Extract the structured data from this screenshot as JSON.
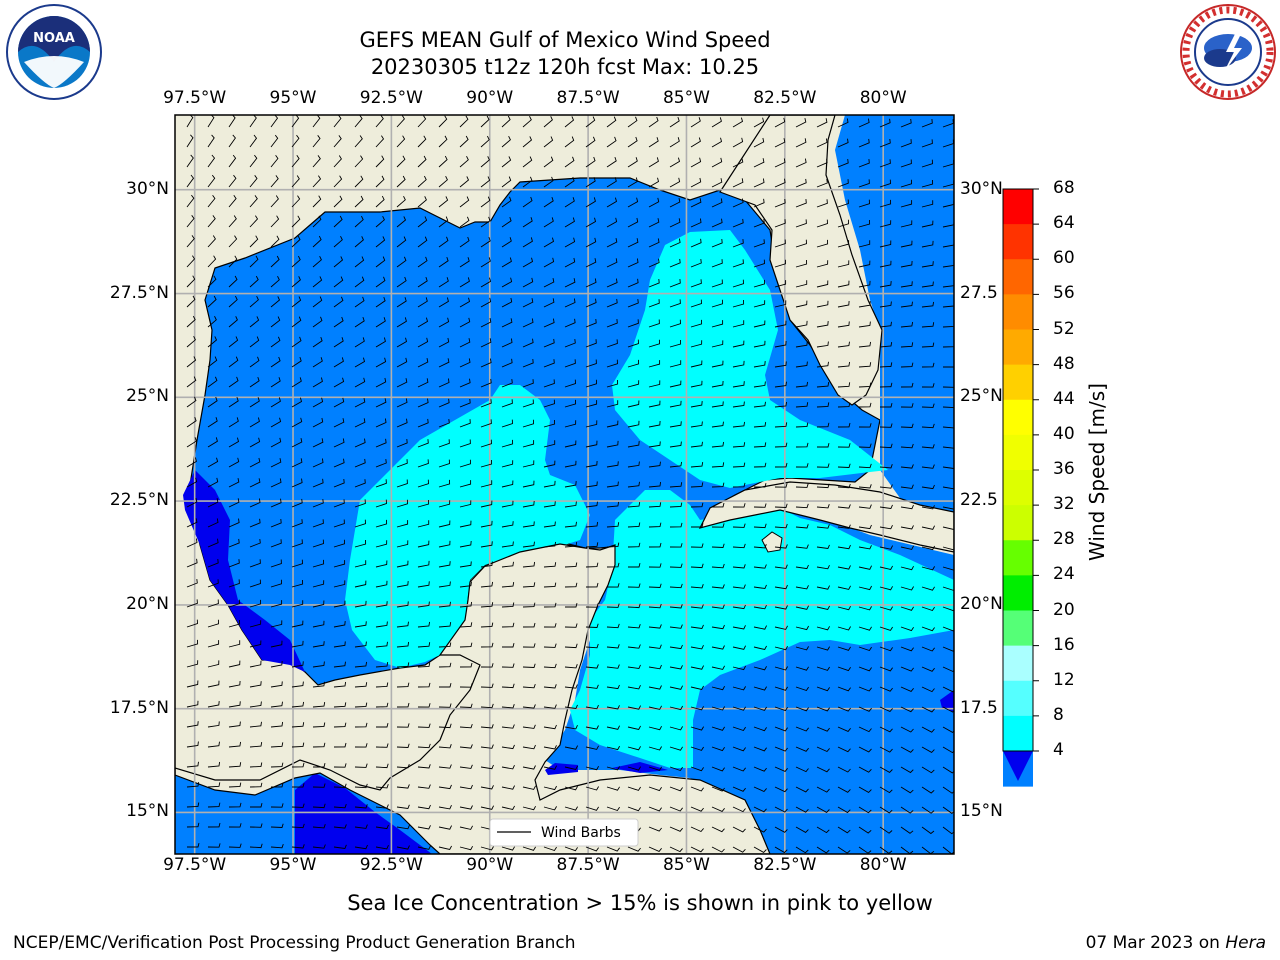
{
  "title": {
    "line1": "GEFS MEAN Gulf of Mexico Wind Speed",
    "line2": "20230305 t12z 120h fcst   Max: 10.25"
  },
  "logos": {
    "left": {
      "name": "NOAA",
      "icon": "noaa-logo-icon",
      "ring_text": "NATIONAL OCEANIC AND ATMOSPHERIC ADMINISTRATION"
    },
    "right": {
      "name": "NATIONAL WEATHER SERVICE",
      "icon": "nws-logo-icon"
    }
  },
  "map": {
    "lon_labels": [
      "97.5°W",
      "95°W",
      "92.5°W",
      "90°W",
      "87.5°W",
      "85°W",
      "82.5°W",
      "80°W"
    ],
    "lat_labels": [
      "30°N",
      "27.5°N",
      "25°N",
      "22.5°N",
      "20°N",
      "17.5°N",
      "15°N"
    ],
    "right_lat_labels": [
      "30°N",
      "27.5",
      "25°N",
      "22.5",
      "20°N",
      "17.5",
      "15°N"
    ],
    "lon_values": [
      -97.5,
      -95,
      -92.5,
      -90,
      -87.5,
      -85,
      -82.5,
      -80
    ],
    "lat_values": [
      30,
      27.5,
      25,
      22.5,
      20,
      17.5,
      15
    ],
    "extent": {
      "lon_min": -98,
      "lon_max": -78.2,
      "lat_min": 14,
      "lat_max": 31.8
    },
    "legend_label": "Wind Barbs",
    "colors": {
      "land": "#eeeddb",
      "grid": "#b0b0b0",
      "c4_8": "#0080ff",
      "c0_4": "#0000ee",
      "c8_12": "#00ffff"
    }
  },
  "colorbar": {
    "label": "Wind Speed [m/s]",
    "ticks": [
      "68",
      "64",
      "60",
      "56",
      "52",
      "48",
      "44",
      "40",
      "36",
      "32",
      "28",
      "24",
      "20",
      "16",
      "12",
      "8",
      "4"
    ],
    "colors": [
      "#ff0000",
      "#ff3300",
      "#ff6600",
      "#ff8c00",
      "#ffaa00",
      "#ffd000",
      "#ffff00",
      "#f0ff00",
      "#ddff00",
      "#ccff00",
      "#66ff00",
      "#00ee00",
      "#55ff77",
      "#aaffff",
      "#55ffff",
      "#00ffff",
      "#0080ff"
    ],
    "extend_color": "#0000ee"
  },
  "subtitle": "Sea Ice Concentration > 15% is shown in pink to yellow",
  "footer": {
    "left": "NCEP/EMC/Verification Post Processing Product Generation Branch",
    "right_date": "07 Mar 2023 on ",
    "right_host": "Hera"
  }
}
